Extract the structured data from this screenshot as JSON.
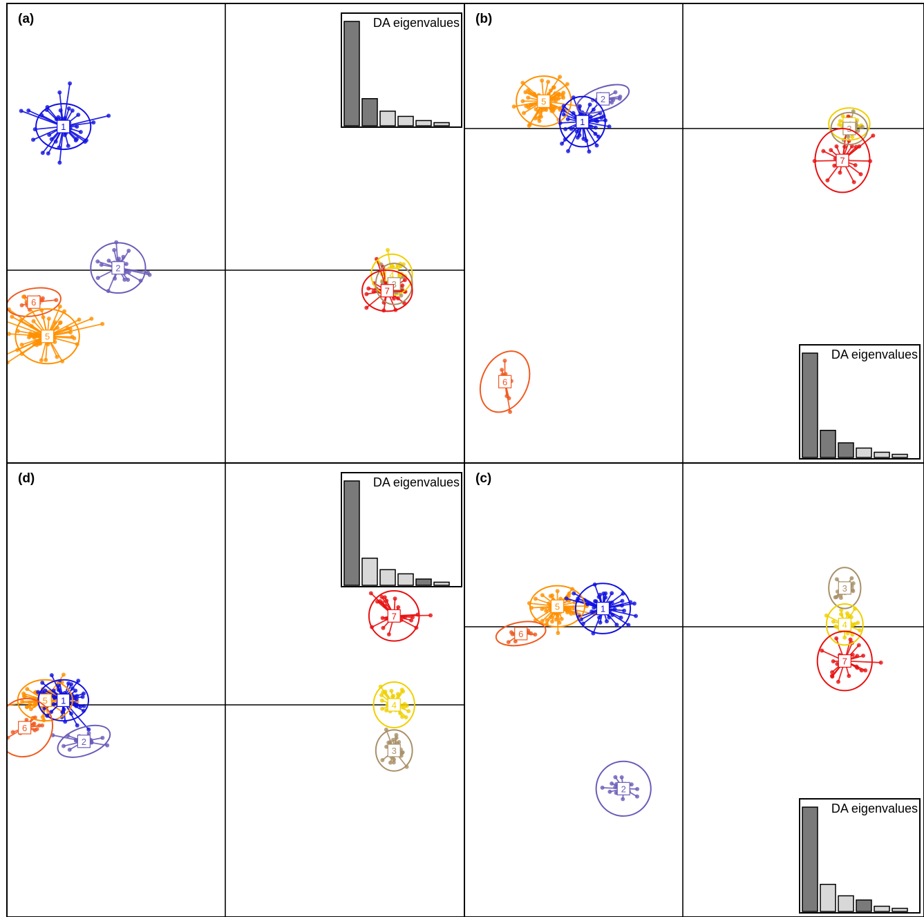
{
  "figure": {
    "type": "scatter",
    "description": "Discriminant analysis (DAPC) scatterplots with cluster labels, inertia ellipses and DA eigenvalue insets"
  },
  "colors": {
    "1": "#1010e0",
    "2": "#6a5cb8",
    "3": "#a89068",
    "4": "#f0d000",
    "5": "#ff9000",
    "6": "#f05a20",
    "7": "#e81010"
  },
  "chart_data": [
    {
      "type": "scatter",
      "panel_label": "(a)",
      "axes": {
        "x_origin": 0,
        "y_origin": 0,
        "xlim": [
          -1,
          1
        ],
        "ylim": [
          -1,
          1
        ]
      },
      "clusters": [
        {
          "id": "1",
          "center": [
            -0.71,
            0.63
          ],
          "radius": [
            0.12,
            0.1
          ],
          "rotation": 0,
          "n": 45,
          "spread": [
            0.28,
            0.3
          ]
        },
        {
          "id": "2",
          "center": [
            -0.47,
            0.01
          ],
          "radius": [
            0.12,
            0.11
          ],
          "rotation": 0,
          "n": 25,
          "spread": [
            0.22,
            0.24
          ]
        },
        {
          "id": "6",
          "center": [
            -0.84,
            -0.14
          ],
          "radius": [
            0.12,
            0.06
          ],
          "rotation": -10,
          "n": 15,
          "spread": [
            0.2,
            0.06
          ]
        },
        {
          "id": "5",
          "center": [
            -0.78,
            -0.29
          ],
          "radius": [
            0.14,
            0.12
          ],
          "rotation": 0,
          "n": 60,
          "spread": [
            0.35,
            0.25
          ]
        },
        {
          "id": "4",
          "center": [
            0.73,
            -0.02
          ],
          "radius": [
            0.09,
            0.09
          ],
          "rotation": 0,
          "n": 30,
          "spread": [
            0.12,
            0.14
          ]
        },
        {
          "id": "3",
          "center": [
            0.74,
            -0.06
          ],
          "radius": [
            0.08,
            0.09
          ],
          "rotation": 0,
          "n": 30,
          "spread": [
            0.12,
            0.12
          ]
        },
        {
          "id": "7",
          "center": [
            0.71,
            -0.09
          ],
          "radius": [
            0.11,
            0.09
          ],
          "rotation": 0,
          "n": 25,
          "spread": [
            0.22,
            0.18
          ]
        }
      ],
      "scree": {
        "title": "DA eigenvalues",
        "position": "top-right",
        "values": [
          100,
          26,
          14,
          9,
          5,
          3
        ],
        "highlight_count": 2
      }
    },
    {
      "type": "scatter",
      "panel_label": "(b)",
      "axes": {
        "x_origin": 0,
        "y_origin": 0,
        "xlim": [
          -1,
          1
        ],
        "ylim": [
          -1,
          1
        ]
      },
      "clusters": [
        {
          "id": "5",
          "center": [
            -0.61,
            0.12
          ],
          "radius": [
            0.12,
            0.11
          ],
          "rotation": 0,
          "n": 60,
          "spread": [
            0.22,
            0.2
          ]
        },
        {
          "id": "2",
          "center": [
            -0.35,
            0.13
          ],
          "radius": [
            0.12,
            0.05
          ],
          "rotation": -20,
          "n": 15,
          "spread": [
            0.2,
            0.07
          ]
        },
        {
          "id": "1",
          "center": [
            -0.44,
            0.03
          ],
          "radius": [
            0.1,
            0.11
          ],
          "rotation": 0,
          "n": 45,
          "spread": [
            0.22,
            0.22
          ]
        },
        {
          "id": "4",
          "center": [
            0.73,
            0.02
          ],
          "radius": [
            0.09,
            0.07
          ],
          "rotation": 0,
          "n": 30,
          "spread": [
            0.1,
            0.09
          ]
        },
        {
          "id": "3",
          "center": [
            0.73,
            0.0
          ],
          "radius": [
            0.08,
            0.07
          ],
          "rotation": 0,
          "n": 25,
          "spread": [
            0.1,
            0.09
          ]
        },
        {
          "id": "7",
          "center": [
            0.7,
            -0.14
          ],
          "radius": [
            0.12,
            0.14
          ],
          "rotation": 0,
          "n": 25,
          "spread": [
            0.22,
            0.25
          ]
        },
        {
          "id": "6",
          "center": [
            -0.78,
            -1.11
          ],
          "radius": [
            0.1,
            0.14
          ],
          "rotation": 25,
          "n": 10,
          "spread": [
            0.1,
            0.24
          ]
        }
      ],
      "scree": {
        "title": "DA eigenvalues",
        "position": "bottom-right",
        "values": [
          100,
          26,
          14,
          9,
          5,
          3
        ],
        "highlight_count": 3
      }
    },
    {
      "type": "scatter",
      "panel_label": "(d)",
      "axes": {
        "x_origin": 0,
        "y_origin": 0,
        "xlim": [
          -1,
          1
        ],
        "ylim": [
          -1,
          1
        ]
      },
      "clusters": [
        {
          "id": "5",
          "center": [
            -0.79,
            0.02
          ],
          "radius": [
            0.12,
            0.09
          ],
          "rotation": 0,
          "n": 60,
          "spread": [
            0.22,
            0.14
          ]
        },
        {
          "id": "1",
          "center": [
            -0.71,
            0.02
          ],
          "radius": [
            0.11,
            0.09
          ],
          "rotation": 0,
          "n": 45,
          "spread": [
            0.24,
            0.2
          ]
        },
        {
          "id": "6",
          "center": [
            -0.88,
            -0.1
          ],
          "radius": [
            0.12,
            0.13
          ],
          "rotation": 30,
          "n": 15,
          "spread": [
            0.14,
            0.14
          ]
        },
        {
          "id": "2",
          "center": [
            -0.62,
            -0.16
          ],
          "radius": [
            0.12,
            0.06
          ],
          "rotation": -20,
          "n": 20,
          "spread": [
            0.22,
            0.07
          ]
        },
        {
          "id": "7",
          "center": [
            0.74,
            0.39
          ],
          "radius": [
            0.11,
            0.11
          ],
          "rotation": 0,
          "n": 25,
          "spread": [
            0.2,
            0.2
          ]
        },
        {
          "id": "4",
          "center": [
            0.74,
            0.0
          ],
          "radius": [
            0.09,
            0.1
          ],
          "rotation": 0,
          "n": 30,
          "spread": [
            0.16,
            0.16
          ]
        },
        {
          "id": "3",
          "center": [
            0.74,
            -0.2
          ],
          "radius": [
            0.08,
            0.09
          ],
          "rotation": 0,
          "n": 30,
          "spread": [
            0.12,
            0.16
          ]
        }
      ],
      "scree": {
        "title": "DA eigenvalues",
        "position": "top-right",
        "values": [
          100,
          26,
          15,
          11,
          6,
          3
        ],
        "highlight_count": 1,
        "extra_highlight": 5
      }
    },
    {
      "type": "scatter",
      "panel_label": "(c)",
      "axes": {
        "x_origin": 0,
        "y_origin": 0,
        "xlim": [
          -1,
          1
        ],
        "ylim": [
          -1,
          1
        ]
      },
      "clusters": [
        {
          "id": "5",
          "center": [
            -0.55,
            0.09
          ],
          "radius": [
            0.12,
            0.09
          ],
          "rotation": 0,
          "n": 60,
          "spread": [
            0.22,
            0.16
          ]
        },
        {
          "id": "1",
          "center": [
            -0.35,
            0.08
          ],
          "radius": [
            0.12,
            0.11
          ],
          "rotation": 0,
          "n": 45,
          "spread": [
            0.24,
            0.22
          ]
        },
        {
          "id": "6",
          "center": [
            -0.71,
            -0.03
          ],
          "radius": [
            0.11,
            0.05
          ],
          "rotation": -10,
          "n": 15,
          "spread": [
            0.16,
            0.06
          ]
        },
        {
          "id": "3",
          "center": [
            0.71,
            0.17
          ],
          "radius": [
            0.07,
            0.09
          ],
          "rotation": 0,
          "n": 25,
          "spread": [
            0.12,
            0.1
          ]
        },
        {
          "id": "4",
          "center": [
            0.71,
            0.01
          ],
          "radius": [
            0.08,
            0.09
          ],
          "rotation": 0,
          "n": 30,
          "spread": [
            0.12,
            0.14
          ]
        },
        {
          "id": "7",
          "center": [
            0.71,
            -0.15
          ],
          "radius": [
            0.12,
            0.13
          ],
          "rotation": 0,
          "n": 25,
          "spread": [
            0.22,
            0.22
          ]
        },
        {
          "id": "2",
          "center": [
            -0.26,
            -0.71
          ],
          "radius": [
            0.12,
            0.12
          ],
          "rotation": 0,
          "n": 15,
          "spread": [
            0.16,
            0.14
          ]
        }
      ],
      "scree": {
        "title": "DA eigenvalues",
        "position": "bottom-right",
        "values": [
          100,
          26,
          15,
          11,
          5,
          3
        ],
        "highlight_count": 1,
        "extra_highlight": 4
      }
    }
  ]
}
